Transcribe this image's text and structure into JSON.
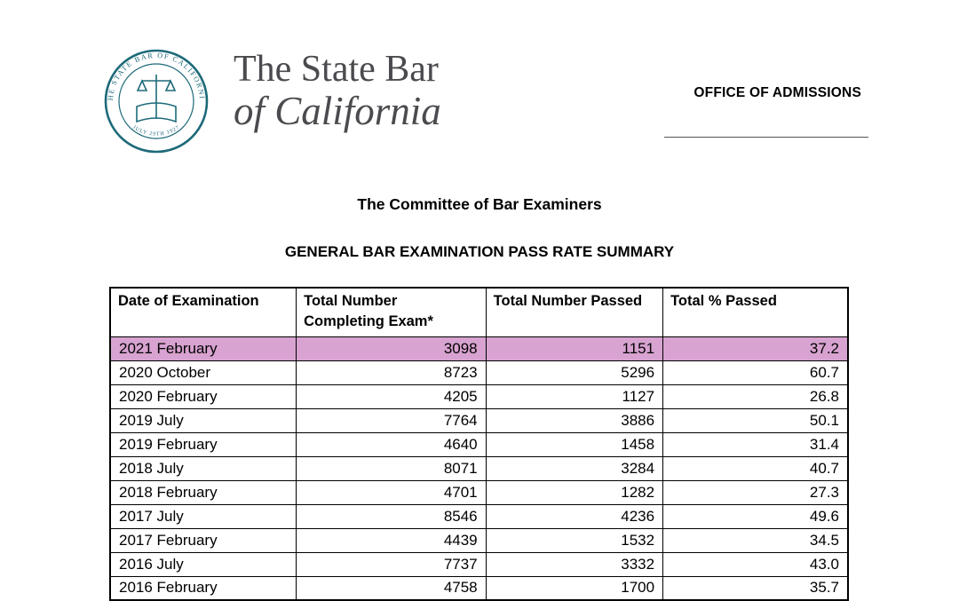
{
  "header": {
    "seal": {
      "label": "Seal of The State Bar of California",
      "ring_text_top": "THE STATE BAR OF CALIFORNIA",
      "ring_text_bottom": "JULY 29TH 1927",
      "color": "#1d6a79"
    },
    "wordmark_line1": "The State Bar",
    "wordmark_line2": "of California",
    "office_label": "OFFICE OF ADMISSIONS"
  },
  "titles": {
    "committee_title": "The Committee of Bar Examiners",
    "summary_title": "GENERAL BAR EXAMINATION PASS RATE SUMMARY"
  },
  "table": {
    "headers": [
      "Date of Examination",
      "Total Number Completing Exam*",
      "Total Number Passed",
      "Total % Passed"
    ],
    "highlight_color": "#d8a3d0",
    "rows": [
      {
        "date": "2021 February",
        "completing": "3098",
        "passed": "1151",
        "pct": "37.2",
        "highlighted": true
      },
      {
        "date": "2020 October",
        "completing": "8723",
        "passed": "5296",
        "pct": "60.7",
        "highlighted": false
      },
      {
        "date": "2020 February",
        "completing": "4205",
        "passed": "1127",
        "pct": "26.8",
        "highlighted": false
      },
      {
        "date": "2019 July",
        "completing": "7764",
        "passed": "3886",
        "pct": "50.1",
        "highlighted": false
      },
      {
        "date": "2019 February",
        "completing": "4640",
        "passed": "1458",
        "pct": "31.4",
        "highlighted": false
      },
      {
        "date": "2018 July",
        "completing": "8071",
        "passed": "3284",
        "pct": "40.7",
        "highlighted": false
      },
      {
        "date": "2018 February",
        "completing": "4701",
        "passed": "1282",
        "pct": "27.3",
        "highlighted": false
      },
      {
        "date": "2017 July",
        "completing": "8546",
        "passed": "4236",
        "pct": "49.6",
        "highlighted": false
      },
      {
        "date": "2017 February",
        "completing": "4439",
        "passed": "1532",
        "pct": "34.5",
        "highlighted": false
      },
      {
        "date": "2016 July",
        "completing": "7737",
        "passed": "3332",
        "pct": "43.0",
        "highlighted": false
      },
      {
        "date": "2016 February",
        "completing": "4758",
        "passed": "1700",
        "pct": "35.7",
        "highlighted": false
      }
    ]
  }
}
